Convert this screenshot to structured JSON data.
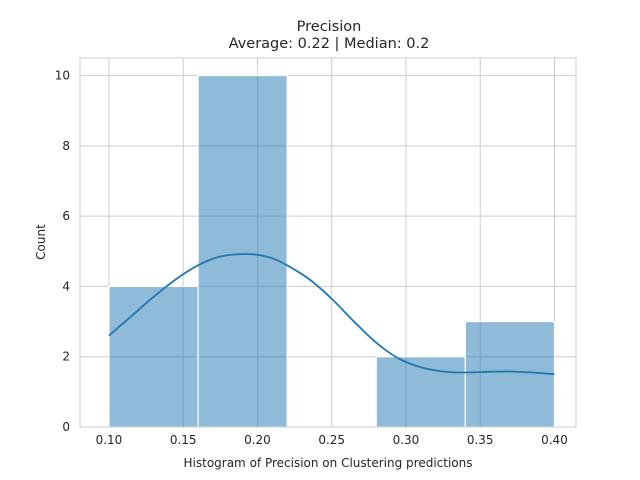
{
  "chart_data": {
    "type": "bar",
    "subtype": "histogram_with_kde",
    "title": "Precision",
    "subtitle": "Average: 0.22 | Median: 0.2",
    "xlabel": "Histogram of Precision on Clustering predictions",
    "ylabel": "Count",
    "xlim": [
      0.0805,
      0.4145
    ],
    "ylim": [
      0,
      10.5
    ],
    "x_ticks": [
      0.1,
      0.15,
      0.2,
      0.25,
      0.3,
      0.35,
      0.4
    ],
    "x_tick_labels": [
      "0.10",
      "0.15",
      "0.20",
      "0.25",
      "0.30",
      "0.35",
      "0.40"
    ],
    "y_ticks": [
      0,
      2,
      4,
      6,
      8,
      10
    ],
    "y_tick_labels": [
      "0",
      "2",
      "4",
      "6",
      "8",
      "10"
    ],
    "bins": [
      {
        "x0": 0.1,
        "x1": 0.16,
        "count": 4
      },
      {
        "x0": 0.16,
        "x1": 0.22,
        "count": 10
      },
      {
        "x0": 0.22,
        "x1": 0.28,
        "count": 0
      },
      {
        "x0": 0.28,
        "x1": 0.34,
        "count": 2
      },
      {
        "x0": 0.34,
        "x1": 0.4,
        "count": 3
      }
    ],
    "kde": {
      "x": [
        0.1,
        0.115,
        0.13,
        0.145,
        0.16,
        0.175,
        0.19,
        0.2,
        0.21,
        0.22,
        0.235,
        0.25,
        0.265,
        0.28,
        0.295,
        0.31,
        0.325,
        0.34,
        0.355,
        0.37,
        0.385,
        0.4
      ],
      "y": [
        2.6,
        3.15,
        3.7,
        4.2,
        4.6,
        4.85,
        4.92,
        4.9,
        4.8,
        4.6,
        4.2,
        3.65,
        3.0,
        2.4,
        1.95,
        1.7,
        1.58,
        1.55,
        1.57,
        1.58,
        1.55,
        1.5
      ]
    },
    "grid": true,
    "colors": {
      "bar": "#1f77b4",
      "kde": "#1f77b4",
      "grid": "#cccccc",
      "text": "#262626"
    }
  }
}
